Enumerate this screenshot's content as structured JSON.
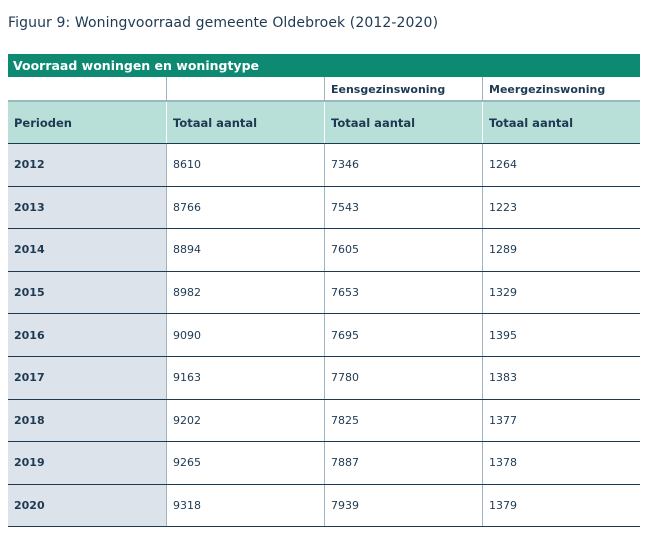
{
  "figure": {
    "title": "Figuur 9: Woningvoorraad gemeente Oldebroek (2012-2020)"
  },
  "table": {
    "title": "Voorraad woningen en woningtype",
    "group_headers": [
      "",
      "",
      "Eensgezinswoning",
      "Meergezinswoning"
    ],
    "column_headers": [
      "Perioden",
      "Totaal aantal",
      "Totaal aantal",
      "Totaal aantal"
    ],
    "rows": [
      {
        "year": "2012",
        "total": "8610",
        "eensgezins": "7346",
        "meergezins": "1264"
      },
      {
        "year": "2013",
        "total": "8766",
        "eensgezins": "7543",
        "meergezins": "1223"
      },
      {
        "year": "2014",
        "total": "8894",
        "eensgezins": "7605",
        "meergezins": "1289"
      },
      {
        "year": "2015",
        "total": "8982",
        "eensgezins": "7653",
        "meergezins": "1329"
      },
      {
        "year": "2016",
        "total": "9090",
        "eensgezins": "7695",
        "meergezins": "1395"
      },
      {
        "year": "2017",
        "total": "9163",
        "eensgezins": "7780",
        "meergezins": "1383"
      },
      {
        "year": "2018",
        "total": "9202",
        "eensgezins": "7825",
        "meergezins": "1377"
      },
      {
        "year": "2019",
        "total": "9265",
        "eensgezins": "7887",
        "meergezins": "1378"
      },
      {
        "year": "2020",
        "total": "9318",
        "eensgezins": "7939",
        "meergezins": "1379"
      }
    ]
  },
  "colors": {
    "header_bg": "#0f8a72",
    "column_header_bg": "#b8e0d8",
    "year_cell_bg": "#dde3ea",
    "text": "#1e3a52"
  }
}
